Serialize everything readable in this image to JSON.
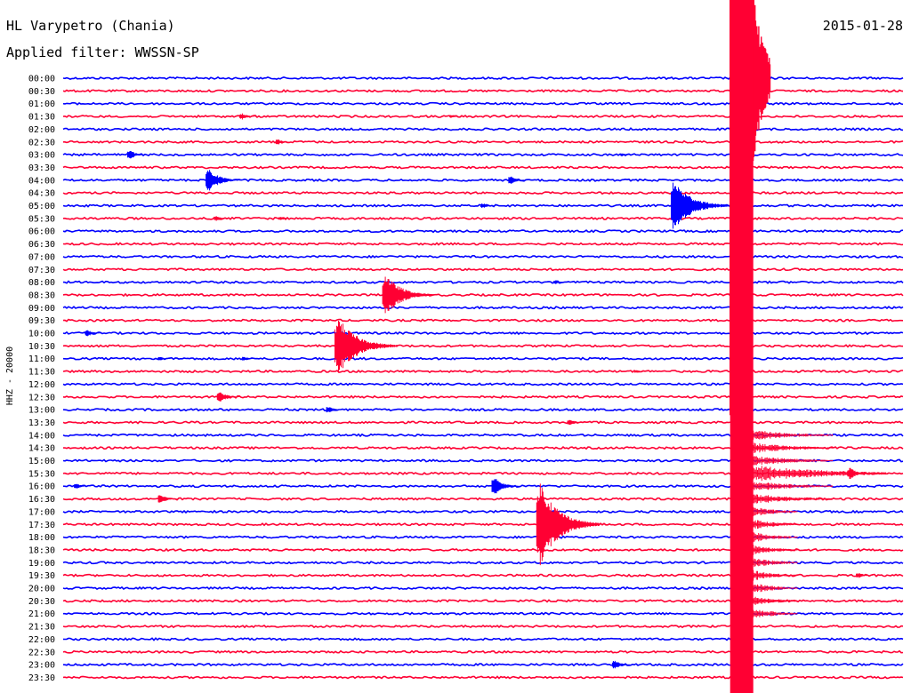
{
  "header": {
    "station": "HL Varypetro (Chania)",
    "date": "2015-01-28",
    "filter": "Applied filter: WWSSN-SP"
  },
  "chart_data": {
    "type": "line",
    "title": "HL Varypetro (Chania)",
    "ylabel": "HHZ - 20000",
    "xlabel": "",
    "colors": [
      "#0000ff",
      "#ff0033"
    ],
    "row_labels": [
      "00:00",
      "00:30",
      "01:00",
      "01:30",
      "02:00",
      "02:30",
      "03:00",
      "03:30",
      "04:00",
      "04:30",
      "05:00",
      "05:30",
      "06:00",
      "06:30",
      "07:00",
      "07:30",
      "08:00",
      "08:30",
      "09:00",
      "09:30",
      "10:00",
      "10:30",
      "11:00",
      "11:30",
      "12:00",
      "12:30",
      "13:00",
      "13:30",
      "14:00",
      "14:30",
      "15:00",
      "15:30",
      "16:00",
      "16:30",
      "17:00",
      "17:30",
      "18:00",
      "18:30",
      "19:00",
      "19:30",
      "20:00",
      "20:30",
      "21:00",
      "21:30",
      "22:00",
      "22:30",
      "23:00",
      "23:30"
    ],
    "row_duration_minutes": 30,
    "events": [
      {
        "row": 3,
        "minute": 6.3,
        "amp": 6
      },
      {
        "row": 3,
        "minute": 13.8,
        "amp": 3
      },
      {
        "row": 5,
        "minute": 7.6,
        "amp": 5
      },
      {
        "row": 6,
        "minute": 2.3,
        "amp": 8
      },
      {
        "row": 6,
        "minute": 19.9,
        "amp": 3
      },
      {
        "row": 8,
        "minute": 5.1,
        "amp": 18
      },
      {
        "row": 8,
        "minute": 15.9,
        "amp": 7
      },
      {
        "row": 10,
        "minute": 14.9,
        "amp": 5
      },
      {
        "row": 10,
        "minute": 21.7,
        "amp": 35
      },
      {
        "row": 11,
        "minute": 5.4,
        "amp": 5
      },
      {
        "row": 11,
        "minute": 7.7,
        "amp": 4
      },
      {
        "row": 16,
        "minute": 17.5,
        "amp": 4
      },
      {
        "row": 17,
        "minute": 11.4,
        "amp": 30
      },
      {
        "row": 20,
        "minute": 0.8,
        "amp": 6
      },
      {
        "row": 21,
        "minute": 9.7,
        "amp": 40
      },
      {
        "row": 22,
        "minute": 3.4,
        "amp": 4
      },
      {
        "row": 22,
        "minute": 6.4,
        "amp": 4
      },
      {
        "row": 23,
        "minute": 20.4,
        "amp": 3
      },
      {
        "row": 25,
        "minute": 5.5,
        "amp": 10
      },
      {
        "row": 26,
        "minute": 9.4,
        "amp": 6
      },
      {
        "row": 27,
        "minute": 18.0,
        "amp": 6
      },
      {
        "row": 32,
        "minute": 0.4,
        "amp": 5
      },
      {
        "row": 32,
        "minute": 15.3,
        "amp": 14
      },
      {
        "row": 33,
        "minute": 3.4,
        "amp": 8
      },
      {
        "row": 35,
        "minute": 16.9,
        "amp": 60
      },
      {
        "row": 39,
        "minute": 28.3,
        "amp": 5
      },
      {
        "row": 46,
        "minute": 19.6,
        "amp": 8
      },
      {
        "row": 0,
        "minute": 23.8,
        "amp": 780
      },
      {
        "row": 31,
        "minute": 28.0,
        "amp": 10
      }
    ]
  }
}
